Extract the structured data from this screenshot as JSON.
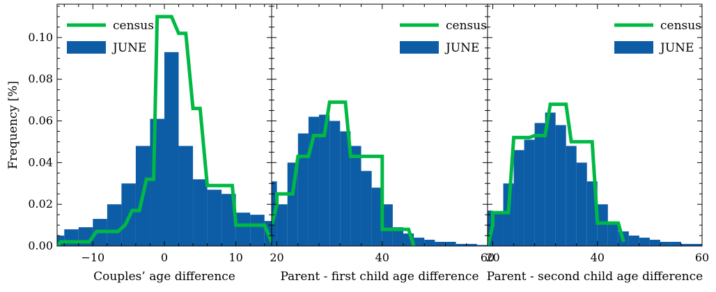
{
  "chart_data": [
    {
      "type": "bar",
      "xlabel": "Couples’ age difference",
      "ylabel": "Frequency [%]",
      "xlim": [
        -15,
        15
      ],
      "ylim": [
        0,
        0.116
      ],
      "xticks": [
        -10,
        0,
        10
      ],
      "yticks": [
        0.0,
        0.02,
        0.04,
        0.06,
        0.08,
        0.1
      ],
      "ytick_labels": [
        "0.00",
        "0.02",
        "0.04",
        "0.06",
        "0.08",
        "0.10"
      ],
      "legend": [
        "census",
        "JUNE"
      ],
      "legend_placement": "top-left",
      "series": [
        {
          "name": "JUNE",
          "kind": "histogram",
          "color": "#0c5da5",
          "bin_edges": [
            -16,
            -14,
            -12,
            -10,
            -8,
            -6,
            -4,
            -2,
            0,
            2,
            4,
            6,
            8,
            10,
            12,
            14,
            16
          ],
          "values": [
            0.005,
            0.008,
            0.009,
            0.013,
            0.02,
            0.03,
            0.048,
            0.061,
            0.093,
            0.048,
            0.032,
            0.027,
            0.025,
            0.016,
            0.015,
            0.012
          ]
        },
        {
          "name": "census",
          "kind": "line",
          "color": "#00b945",
          "x": [
            -15,
            -14.5,
            -13.5,
            -10.5,
            -9.5,
            -6.5,
            -5.5,
            -4.5,
            -3.5,
            -2.5,
            -1.5,
            -1,
            1,
            2,
            3,
            4,
            5,
            6,
            7,
            9.5,
            10,
            14,
            15
          ],
          "y": [
            0.0,
            0.002,
            0.002,
            0.002,
            0.007,
            0.007,
            0.01,
            0.017,
            0.017,
            0.032,
            0.032,
            0.11,
            0.11,
            0.102,
            0.102,
            0.066,
            0.066,
            0.029,
            0.029,
            0.029,
            0.01,
            0.01,
            0.002
          ]
        }
      ]
    },
    {
      "type": "bar",
      "xlabel": "Parent - first child age difference",
      "xlim": [
        19,
        60
      ],
      "ylim": [
        0,
        0.116
      ],
      "xticks": [
        20,
        40,
        60
      ],
      "legend": [
        "census",
        "JUNE"
      ],
      "legend_placement": "top-right",
      "series": [
        {
          "name": "JUNE",
          "kind": "histogram",
          "color": "#0c5da5",
          "bin_edges": [
            18,
            20,
            22,
            24,
            26,
            28,
            30,
            32,
            34,
            36,
            38,
            40,
            42,
            44,
            46,
            48,
            50,
            52,
            54,
            56,
            58,
            60
          ],
          "values": [
            0.031,
            0.02,
            0.04,
            0.054,
            0.062,
            0.063,
            0.06,
            0.055,
            0.048,
            0.036,
            0.028,
            0.02,
            0.009,
            0.006,
            0.004,
            0.003,
            0.002,
            0.002,
            0.001,
            0.001,
            0.0005
          ]
        },
        {
          "name": "census",
          "kind": "line",
          "color": "#00b945",
          "x": [
            19,
            20,
            20,
            23,
            24,
            26,
            27,
            29,
            30,
            33,
            34,
            40,
            40,
            45,
            46
          ],
          "y": [
            0.01,
            0.02,
            0.025,
            0.025,
            0.043,
            0.043,
            0.053,
            0.053,
            0.069,
            0.069,
            0.043,
            0.043,
            0.008,
            0.008,
            0.0
          ]
        }
      ]
    },
    {
      "type": "bar",
      "xlabel": "Parent - second child age difference",
      "xlim": [
        19,
        60
      ],
      "ylim": [
        0,
        0.116
      ],
      "xticks": [
        20,
        40,
        60
      ],
      "legend": [
        "census",
        "JUNE"
      ],
      "legend_placement": "top-right",
      "series": [
        {
          "name": "JUNE",
          "kind": "histogram",
          "color": "#0c5da5",
          "bin_edges": [
            18,
            20,
            22,
            24,
            26,
            28,
            30,
            32,
            34,
            36,
            38,
            40,
            42,
            44,
            46,
            48,
            50,
            52,
            54,
            56,
            58,
            60
          ],
          "values": [
            0.017,
            0.016,
            0.03,
            0.046,
            0.051,
            0.059,
            0.064,
            0.058,
            0.048,
            0.04,
            0.031,
            0.02,
            0.011,
            0.007,
            0.005,
            0.004,
            0.003,
            0.002,
            0.002,
            0.001,
            0.001
          ]
        },
        {
          "name": "census",
          "kind": "line",
          "color": "#00b945",
          "x": [
            19,
            20,
            20,
            23,
            24,
            27,
            28,
            30,
            31,
            34,
            35,
            39,
            40,
            44,
            45
          ],
          "y": [
            0.0,
            0.01,
            0.016,
            0.016,
            0.052,
            0.052,
            0.053,
            0.053,
            0.068,
            0.068,
            0.05,
            0.05,
            0.011,
            0.011,
            0.002
          ]
        }
      ]
    }
  ]
}
